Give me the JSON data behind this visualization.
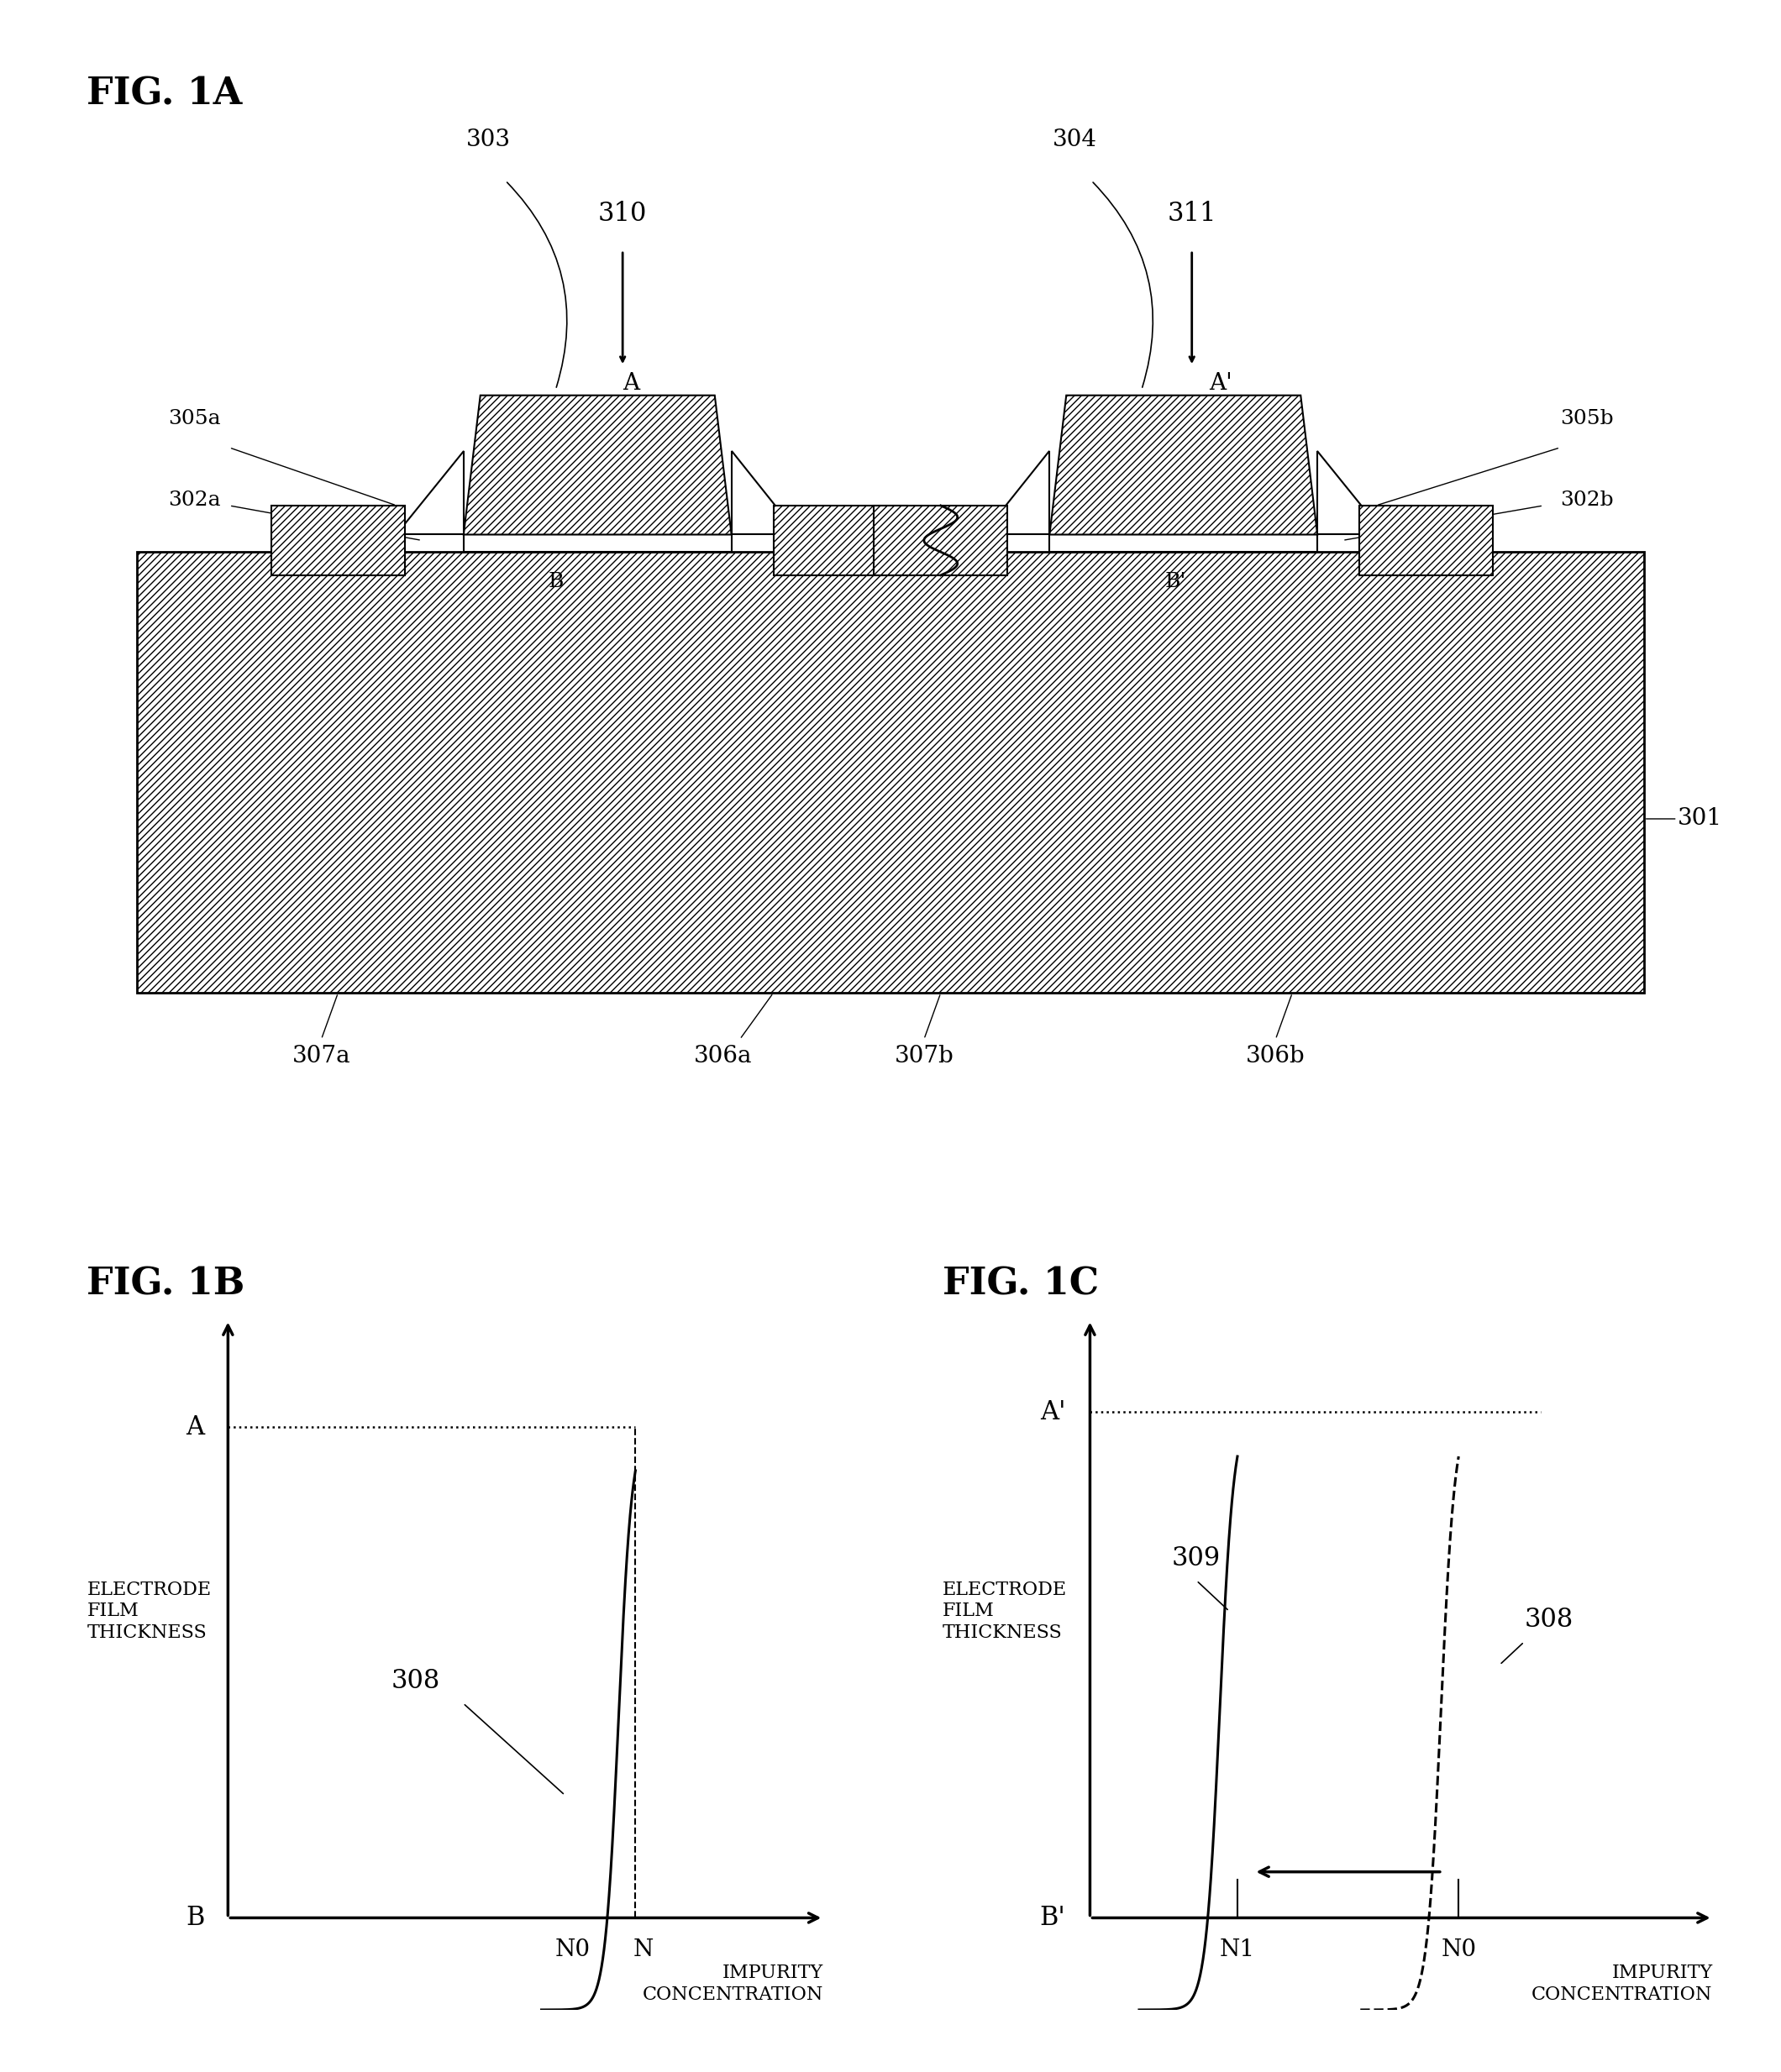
{
  "fig_title_1A": "FIG. 1A",
  "fig_title_1B": "FIG. 1B",
  "fig_title_1C": "FIG. 1C",
  "bg_color": "#ffffff",
  "label_301": "301",
  "label_302a": "302a",
  "label_302b": "302b",
  "label_303": "303",
  "label_304": "304",
  "label_305a": "305a",
  "label_305b": "305b",
  "label_306a": "306a",
  "label_306b": "306b",
  "label_307a": "307a",
  "label_307b": "307b",
  "label_308": "308",
  "label_309": "309",
  "label_310": "310",
  "label_311": "311",
  "label_A": "A",
  "label_Ap": "A'",
  "label_B": "B",
  "label_Bp": "B'",
  "label_N0": "N0",
  "label_N": "N",
  "label_N1": "N1",
  "label_electrode_film_thickness": "ELECTRODE\nFILM\nTHICKNESS",
  "label_impurity_concentration": "IMPURITY\nCONCENTRATION"
}
